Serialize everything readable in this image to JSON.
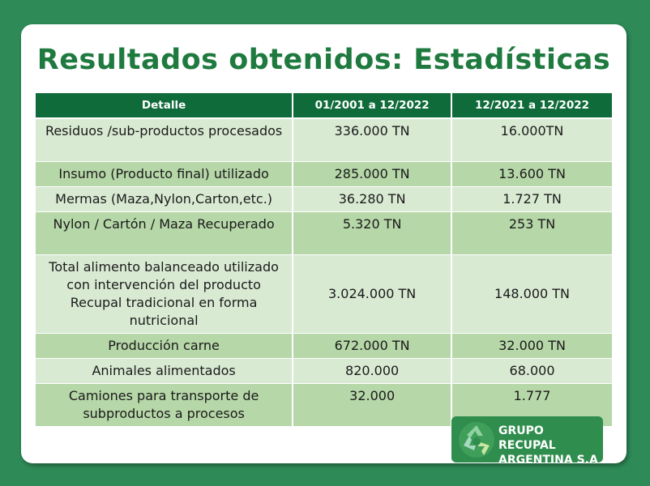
{
  "title": "Resultados obtenidos: Estadísticas",
  "table": {
    "headers": [
      "Detalle",
      "01/2001 a 12/2022",
      "12/2021 a 12/2022"
    ],
    "rows": [
      {
        "detail": "Residuos /sub-productos procesados",
        "p1": "336.000 TN",
        "p2": "16.000TN"
      },
      {
        "detail": "Insumo (Producto final) utilizado",
        "p1": "285.000 TN",
        "p2": "13.600 TN"
      },
      {
        "detail": "Mermas (Maza,Nylon,Carton,etc.)",
        "p1": "36.280 TN",
        "p2": "1.727 TN"
      },
      {
        "detail": "Nylon / Cartón / Maza Recuperado",
        "p1": "5.320 TN",
        "p2": "253 TN"
      },
      {
        "detail": "Total alimento balanceado utilizado con intervención del producto Recupal tradicional en forma nutricional",
        "p1": "3.024.000 TN",
        "p2": "148.000 TN"
      },
      {
        "detail": "Producción  carne",
        "p1": "672.000 TN",
        "p2": "32.000 TN"
      },
      {
        "detail": "Animales alimentados",
        "p1": "820.000",
        "p2": "68.000"
      },
      {
        "detail": "Camiones para transporte de subproductos  a procesos",
        "p1": "32.000",
        "p2": "1.777"
      }
    ]
  },
  "logo": {
    "line1": "GRUPO RECUPAL",
    "line2": "ARGENTINA S.A",
    "icon": "recycle-icon"
  },
  "colors": {
    "background": "#2e8b57",
    "title": "#1f7a3f",
    "header": "#0f6b3a",
    "row_light": "#d9ead3",
    "row_dark": "#b6d7a8"
  }
}
